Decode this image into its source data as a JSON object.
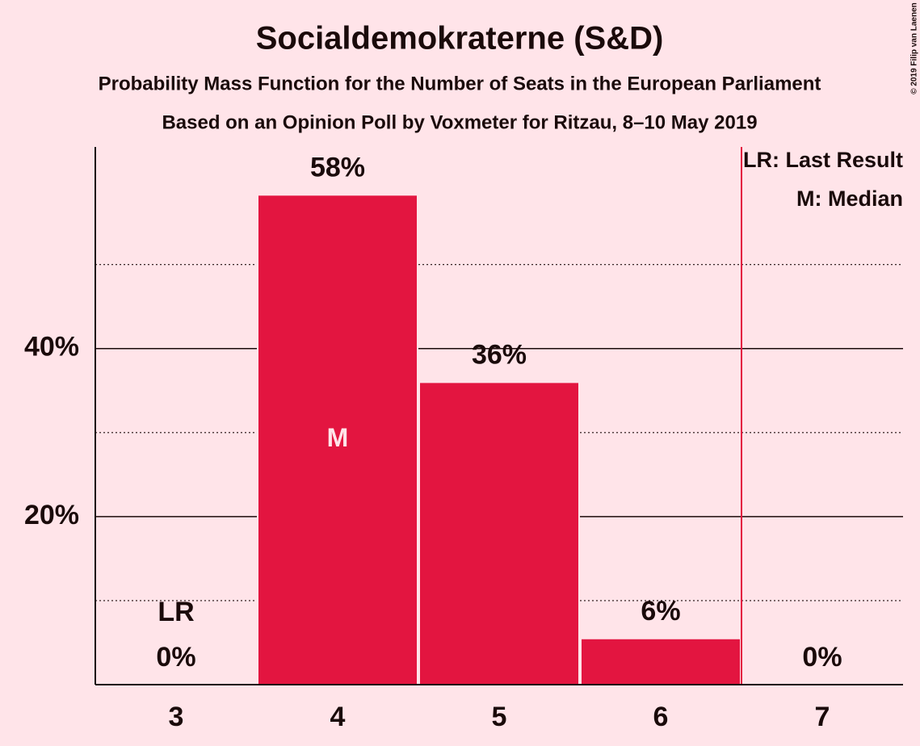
{
  "chart_data": {
    "type": "bar",
    "title": "Socialdemokraterne (S&D)",
    "subtitle": "Probability Mass Function for the Number of Seats in the European Parliament",
    "subtitle2": "Based on an Opinion Poll by Voxmeter for Ritzau, 8–10 May 2019",
    "copyright": "© 2019 Filip van Laenen",
    "x": [
      3,
      4,
      5,
      6,
      7
    ],
    "xlim": [
      2.5,
      7.5
    ],
    "values": [
      0,
      58.3,
      36,
      5.5,
      0
    ],
    "value_labels": [
      "0%",
      "58%",
      "36%",
      "6%",
      "0%"
    ],
    "color": "#e31540",
    "ylim": [
      0,
      64
    ],
    "yticks": [
      {
        "value": 20,
        "label": "20%"
      },
      {
        "value": 40,
        "label": "40%"
      }
    ],
    "yticks_minor": [
      10,
      30,
      50
    ],
    "grid": true,
    "annotations": [
      {
        "label": "LR",
        "x": 3
      },
      {
        "label": "M",
        "x": 4
      }
    ],
    "last_result_line": {
      "x": 6.5,
      "color": "#e31540"
    },
    "legend": [
      "LR: Last Result",
      "M: Median"
    ],
    "legend_position": "top-right"
  }
}
